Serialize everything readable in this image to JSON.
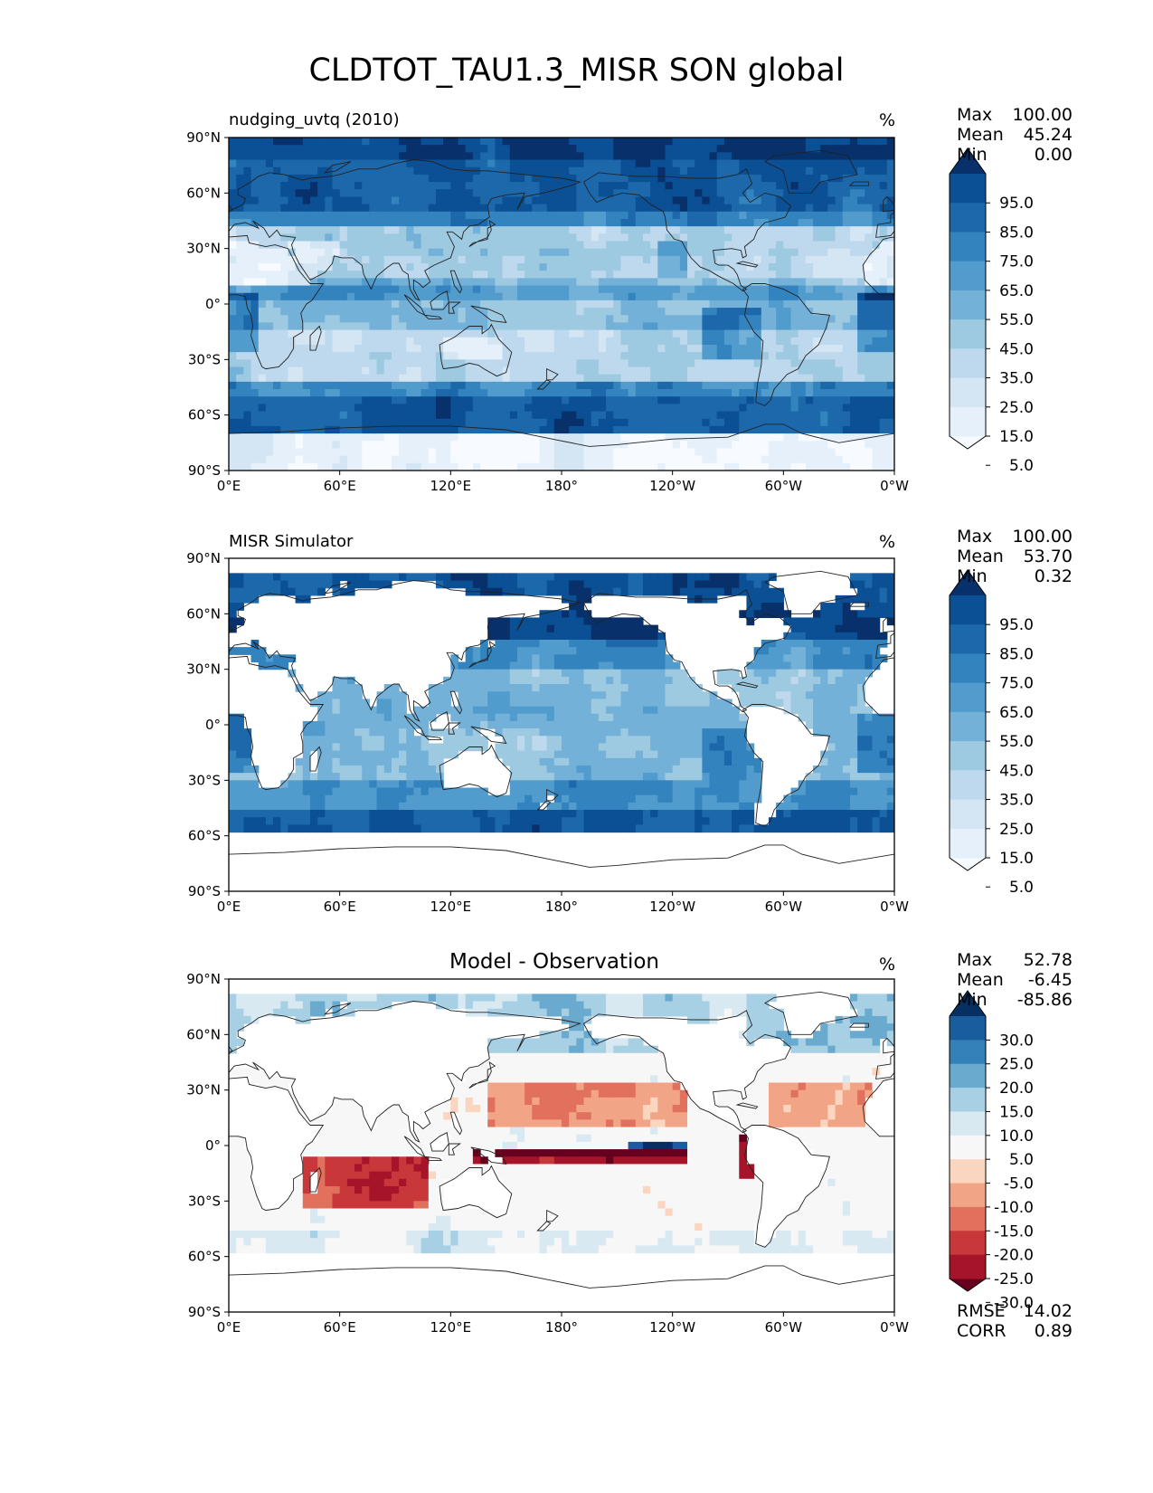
{
  "title": "CLDTOT_TAU1.3_MISR SON global",
  "lat_ticks": [
    "90°N",
    "60°N",
    "30°N",
    "0°",
    "30°S",
    "60°S",
    "90°S"
  ],
  "lon_ticks": [
    "0°E",
    "60°E",
    "120°E",
    "180°",
    "120°W",
    "60°W",
    "0°W"
  ],
  "panels": [
    {
      "id": "model",
      "title": "nudging_uvtq (2010)",
      "units": "%",
      "stats": [
        {
          "k": "Max",
          "v": "100.00"
        },
        {
          "k": "Mean",
          "v": "45.24"
        },
        {
          "k": "Min",
          "v": "0.00"
        }
      ],
      "colorbar_labels": [
        "95.0",
        "85.0",
        "75.0",
        "65.0",
        "55.0",
        "45.0",
        "35.0",
        "25.0",
        "15.0",
        "5.0"
      ],
      "colors": [
        "#f7fbff",
        "#e6f0fa",
        "#d4e5f4",
        "#bed8ed",
        "#9ecae1",
        "#74b1d9",
        "#519ccc",
        "#3383be",
        "#1c68ab",
        "#0b4f94",
        "#08306b"
      ]
    },
    {
      "id": "obs",
      "title": "MISR Simulator",
      "units": "%",
      "stats": [
        {
          "k": "Max",
          "v": "100.00"
        },
        {
          "k": "Mean",
          "v": "53.70"
        },
        {
          "k": "Min",
          "v": "0.32"
        }
      ],
      "colorbar_labels": [
        "95.0",
        "85.0",
        "75.0",
        "65.0",
        "55.0",
        "45.0",
        "35.0",
        "25.0",
        "15.0",
        "5.0"
      ],
      "colors": [
        "#f7fbff",
        "#e6f0fa",
        "#d4e5f4",
        "#bed8ed",
        "#9ecae1",
        "#74b1d9",
        "#519ccc",
        "#3383be",
        "#1c68ab",
        "#0b4f94",
        "#08306b"
      ]
    },
    {
      "id": "diff",
      "title": "Model - Observation",
      "units": "%",
      "stats": [
        {
          "k": "Max",
          "v": "52.78"
        },
        {
          "k": "Mean",
          "v": "-6.45"
        },
        {
          "k": "Min",
          "v": "-85.86"
        }
      ],
      "colorbar_labels": [
        "30.0",
        "25.0",
        "20.0",
        "15.0",
        "10.0",
        "5.0",
        "-5.0",
        "-10.0",
        "-15.0",
        "-20.0",
        "-25.0",
        "-30.0"
      ],
      "colors": [
        "#67001f",
        "#a51429",
        "#c8373a",
        "#e1705c",
        "#f2a586",
        "#fad5c0",
        "#f7f7f7",
        "#d9e9f2",
        "#a8d0e4",
        "#6aaacf",
        "#3480b9",
        "#1a5d9e",
        "#053061"
      ],
      "metrics": [
        {
          "k": "RMSE",
          "v": "14.02"
        },
        {
          "k": "CORR",
          "v": "0.89"
        }
      ]
    }
  ]
}
